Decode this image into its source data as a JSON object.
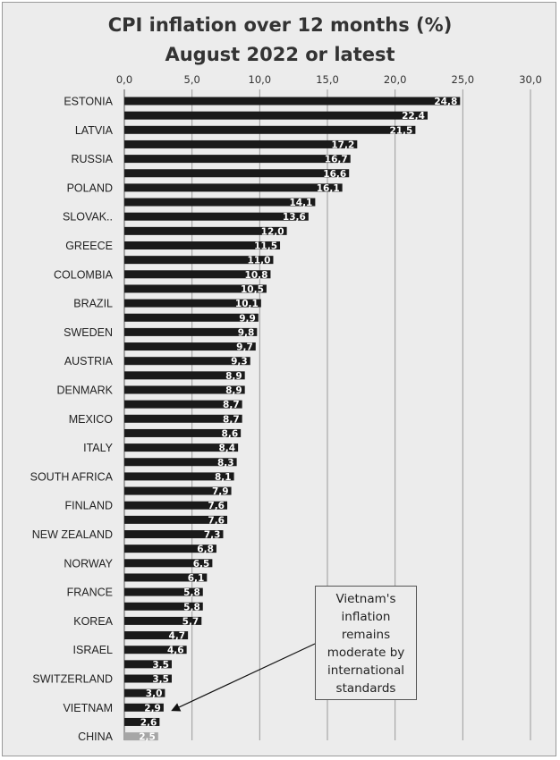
{
  "chart_data": {
    "type": "bar",
    "orientation": "horizontal",
    "title": "CPI inflation over 12 months (%)",
    "subtitle": "August 2022 or latest",
    "xlim": [
      0,
      30
    ],
    "xticks": [
      "0,0",
      "5,0",
      "10,0",
      "15,0",
      "20,0",
      "25,0",
      "30,0"
    ],
    "grid": true,
    "bar_color": "#1a1a1a",
    "highlight_color": "#a6a6a6",
    "highlight_index": 44,
    "categories": [
      "ESTONIA",
      "",
      "LATVIA",
      "",
      "RUSSIA",
      "",
      "POLAND",
      "",
      "SLOVAK..",
      "",
      "GREECE",
      "",
      "COLOMBIA",
      "",
      "BRAZIL",
      "",
      "SWEDEN",
      "",
      "AUSTRIA",
      "",
      "DENMARK",
      "",
      "MEXICO",
      "",
      "ITALY",
      "",
      "SOUTH AFRICA",
      "",
      "FINLAND",
      "",
      "NEW ZEALAND",
      "",
      "NORWAY",
      "",
      "FRANCE",
      "",
      "KOREA",
      "",
      "ISRAEL",
      "",
      "SWITZERLAND",
      "",
      "VIETNAM",
      "",
      "CHINA"
    ],
    "values": [
      24.8,
      22.4,
      21.5,
      17.2,
      16.7,
      16.6,
      16.1,
      14.1,
      13.6,
      12.0,
      11.5,
      11.0,
      10.8,
      10.5,
      10.1,
      9.9,
      9.8,
      9.7,
      9.3,
      8.9,
      8.9,
      8.7,
      8.7,
      8.6,
      8.4,
      8.3,
      8.1,
      7.9,
      7.6,
      7.6,
      7.3,
      6.8,
      6.5,
      6.1,
      5.8,
      5.8,
      5.7,
      4.7,
      4.6,
      3.5,
      3.5,
      3.0,
      2.9,
      2.6,
      2.5
    ],
    "value_labels": [
      "24,8",
      "22,4",
      "21,5",
      "17,2",
      "16,7",
      "16,6",
      "16,1",
      "14,1",
      "13,6",
      "12,0",
      "11,5",
      "11,0",
      "10,8",
      "10,5",
      "10,1",
      "9,9",
      "9,8",
      "9,7",
      "9,3",
      "8,9",
      "8,9",
      "8,7",
      "8,7",
      "8,6",
      "8,4",
      "8,3",
      "8,1",
      "7,9",
      "7,6",
      "7,6",
      "7,3",
      "6,8",
      "6,5",
      "6,1",
      "5,8",
      "5,8",
      "5,7",
      "4,7",
      "4,6",
      "3,5",
      "3,5",
      "3,0",
      "2,9",
      "2,6",
      "2,5"
    ],
    "annotation": {
      "text_lines": [
        "Vietnam's",
        "inflation",
        "remains",
        "moderate by",
        "international",
        "standards"
      ],
      "target_index": 42
    }
  }
}
